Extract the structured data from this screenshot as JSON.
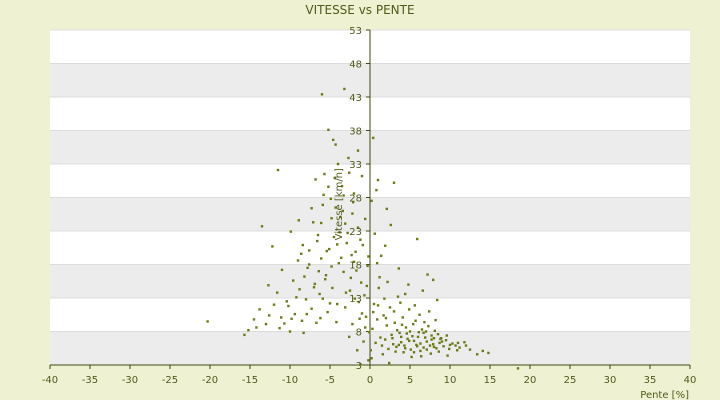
{
  "chart_data": {
    "type": "scatter",
    "title": "VITESSE vs PENTE",
    "xlabel": "Pente [%]",
    "ylabel": "Vitesse [km/h]",
    "xlim": [
      -40,
      40
    ],
    "ylim": [
      3,
      53
    ],
    "x_ticks": [
      "-40",
      "-35",
      "-30",
      "-25",
      "-20",
      "-15",
      "-10",
      "-5",
      "0",
      "5",
      "10",
      "15",
      "20",
      "25",
      "30",
      "35",
      "40"
    ],
    "y_ticks": [
      "3",
      "8",
      "13",
      "18",
      "23",
      "28",
      "33",
      "38",
      "43",
      "48",
      "53"
    ],
    "grid": true,
    "legend": "none",
    "colors": {
      "background": "#eef2d2",
      "band": "#ececec",
      "plot": "#ffffff",
      "axis": "#3c4a10",
      "point": "#6b7a18",
      "text": "#4f5a1c"
    },
    "points": [
      [
        -20.3,
        9.5
      ],
      [
        -15.7,
        7.5
      ],
      [
        -15.2,
        8.2
      ],
      [
        -14.5,
        9.8
      ],
      [
        -13.8,
        11.3
      ],
      [
        -13.5,
        23.7
      ],
      [
        -12.6,
        10.4
      ],
      [
        -12.2,
        20.7
      ],
      [
        -11.6,
        13.8
      ],
      [
        -11.3,
        8.5
      ],
      [
        -11.0,
        17.2
      ],
      [
        -10.7,
        9.2
      ],
      [
        -10.4,
        12.5
      ],
      [
        -10.0,
        8.0
      ],
      [
        -9.9,
        22.9
      ],
      [
        -9.6,
        15.6
      ],
      [
        -9.4,
        10.6
      ],
      [
        -9.0,
        18.6
      ],
      [
        -8.8,
        14.3
      ],
      [
        -8.5,
        9.6
      ],
      [
        -8.3,
        7.8
      ],
      [
        -8.0,
        12.8
      ],
      [
        -7.8,
        17.5
      ],
      [
        -7.6,
        20.1
      ],
      [
        -7.3,
        11.4
      ],
      [
        -7.1,
        24.3
      ],
      [
        -6.9,
        15.1
      ],
      [
        -6.7,
        9.3
      ],
      [
        -6.5,
        22.4
      ],
      [
        -6.3,
        13.6
      ],
      [
        -6.1,
        18.9
      ],
      [
        -5.9,
        26.9
      ],
      [
        -5.7,
        31.5
      ],
      [
        -5.5,
        16.4
      ],
      [
        -5.3,
        10.9
      ],
      [
        -5.1,
        20.3
      ],
      [
        -4.9,
        27.8
      ],
      [
        -4.7,
        14.5
      ],
      [
        -4.5,
        22.1
      ],
      [
        -4.3,
        35.9
      ],
      [
        -4.1,
        12.1
      ],
      [
        -3.9,
        18.2
      ],
      [
        -3.7,
        25.1
      ],
      [
        -3.5,
        29.7
      ],
      [
        -3.3,
        16.9
      ],
      [
        -3.1,
        11.6
      ],
      [
        -2.9,
        21.2
      ],
      [
        -2.7,
        33.9
      ],
      [
        -2.5,
        14.1
      ],
      [
        -2.3,
        19.4
      ],
      [
        -2.1,
        27.3
      ],
      [
        -1.9,
        12.9
      ],
      [
        -1.7,
        17.1
      ],
      [
        -1.5,
        23.5
      ],
      [
        -1.3,
        9.9
      ],
      [
        -1.1,
        15.3
      ],
      [
        -0.9,
        20.9
      ],
      [
        -0.7,
        13.4
      ],
      [
        -0.5,
        10.2
      ],
      [
        -0.3,
        17.8
      ],
      [
        -0.1,
        7.9
      ],
      [
        -11.5,
        32.1
      ],
      [
        -5.2,
        38.1
      ],
      [
        -3.2,
        44.2
      ],
      [
        -6.0,
        43.4
      ],
      [
        -4.6,
        36.6
      ],
      [
        -4.0,
        33.0
      ],
      [
        -7.3,
        26.4
      ],
      [
        -8.9,
        24.6
      ],
      [
        -6.8,
        30.7
      ],
      [
        -5.8,
        28.4
      ],
      [
        0.1,
        5.2
      ],
      [
        0.3,
        8.4
      ],
      [
        0.5,
        12.1
      ],
      [
        0.7,
        6.3
      ],
      [
        0.9,
        9.8
      ],
      [
        1.1,
        14.5
      ],
      [
        1.3,
        7.1
      ],
      [
        1.5,
        5.9
      ],
      [
        1.7,
        10.4
      ],
      [
        1.9,
        6.8
      ],
      [
        2.1,
        8.9
      ],
      [
        2.3,
        5.4
      ],
      [
        2.5,
        11.6
      ],
      [
        2.7,
        7.5
      ],
      [
        2.9,
        6.1
      ],
      [
        3.1,
        9.3
      ],
      [
        3.3,
        5.7
      ],
      [
        3.5,
        13.2
      ],
      [
        3.7,
        7.8
      ],
      [
        3.9,
        6.4
      ],
      [
        4.1,
        10.1
      ],
      [
        4.3,
        5.9
      ],
      [
        4.5,
        8.6
      ],
      [
        4.7,
        6.9
      ],
      [
        4.9,
        11.3
      ],
      [
        5.1,
        5.3
      ],
      [
        5.3,
        7.3
      ],
      [
        5.5,
        6.6
      ],
      [
        5.7,
        9.6
      ],
      [
        5.9,
        5.8
      ],
      [
        6.1,
        7.9
      ],
      [
        6.3,
        6.2
      ],
      [
        6.5,
        8.3
      ],
      [
        6.7,
        5.6
      ],
      [
        6.9,
        7.1
      ],
      [
        7.1,
        6.5
      ],
      [
        7.3,
        8.8
      ],
      [
        7.5,
        5.9
      ],
      [
        7.7,
        7.4
      ],
      [
        7.9,
        6.1
      ],
      [
        8.1,
        8.1
      ],
      [
        8.3,
        5.5
      ],
      [
        8.5,
        7.6
      ],
      [
        8.7,
        6.3
      ],
      [
        8.9,
        7.0
      ],
      [
        9.2,
        5.8
      ],
      [
        9.5,
        6.7
      ],
      [
        9.9,
        5.4
      ],
      [
        10.3,
        6.2
      ],
      [
        10.7,
        5.9
      ],
      [
        11.2,
        5.6
      ],
      [
        11.8,
        6.4
      ],
      [
        12.5,
        5.3
      ],
      [
        13.4,
        4.6
      ],
      [
        14.1,
        5.1
      ],
      [
        14.8,
        4.8
      ],
      [
        18.5,
        2.5
      ],
      [
        0.4,
        36.9
      ],
      [
        1.0,
        30.6
      ],
      [
        3.0,
        30.2
      ],
      [
        2.1,
        26.3
      ],
      [
        2.6,
        23.9
      ],
      [
        5.9,
        21.8
      ],
      [
        0.6,
        22.6
      ],
      [
        1.4,
        19.3
      ],
      [
        7.2,
        16.5
      ],
      [
        7.9,
        15.7
      ],
      [
        4.4,
        13.6
      ],
      [
        6.6,
        14.1
      ],
      [
        8.4,
        12.7
      ],
      [
        3.6,
        17.4
      ],
      [
        1.2,
        16.1
      ],
      [
        0.2,
        27.5
      ],
      [
        -0.6,
        24.8
      ],
      [
        0.8,
        29.1
      ],
      [
        -1.0,
        31.2
      ],
      [
        -2.0,
        28.6
      ],
      [
        -3.4,
        26.0
      ],
      [
        -4.4,
        30.9
      ],
      [
        -2.8,
        22.7
      ],
      [
        -1.8,
        19.9
      ],
      [
        -0.4,
        14.8
      ],
      [
        -1.4,
        12.4
      ],
      [
        -2.2,
        9.1
      ],
      [
        -0.8,
        6.5
      ],
      [
        -1.6,
        5.2
      ],
      [
        -2.6,
        7.2
      ],
      [
        -0.2,
        3.7
      ],
      [
        -1.2,
        3.1
      ],
      [
        2.4,
        3.3
      ],
      [
        5.2,
        4.2
      ],
      [
        4.2,
        4.9
      ],
      [
        3.2,
        5.0
      ],
      [
        6.4,
        4.3
      ],
      [
        7.6,
        4.7
      ],
      [
        8.6,
        5.0
      ],
      [
        9.7,
        4.4
      ],
      [
        10.9,
        5.2
      ],
      [
        1.6,
        4.6
      ],
      [
        0.2,
        4.0
      ],
      [
        2.8,
        7.0
      ],
      [
        3.4,
        8.2
      ],
      [
        4.6,
        7.7
      ],
      [
        5.4,
        9.1
      ],
      [
        6.2,
        10.5
      ],
      [
        6.8,
        9.4
      ],
      [
        7.4,
        11.0
      ],
      [
        8.2,
        9.7
      ],
      [
        1.8,
        12.9
      ],
      [
        2.2,
        15.4
      ],
      [
        3.8,
        12.3
      ],
      [
        4.8,
        15.0
      ],
      [
        5.6,
        11.9
      ],
      [
        0.9,
        18.2
      ],
      [
        1.9,
        20.8
      ],
      [
        -3.6,
        19.0
      ],
      [
        -4.8,
        17.7
      ],
      [
        -5.6,
        15.8
      ],
      [
        -6.4,
        17.0
      ],
      [
        -7.0,
        14.6
      ],
      [
        -8.2,
        16.2
      ],
      [
        -9.2,
        13.1
      ],
      [
        -10.2,
        11.8
      ],
      [
        -12.0,
        12.0
      ],
      [
        -13.0,
        9.1
      ],
      [
        -14.2,
        8.6
      ],
      [
        -6.2,
        10.0
      ],
      [
        -5.0,
        12.2
      ],
      [
        -4.2,
        9.4
      ],
      [
        -3.0,
        13.8
      ],
      [
        -2.4,
        16.0
      ],
      [
        -3.8,
        22.8
      ],
      [
        -4.8,
        24.9
      ],
      [
        -5.4,
        20.0
      ],
      [
        -6.6,
        21.5
      ],
      [
        -7.6,
        18.0
      ],
      [
        -8.6,
        19.6
      ],
      [
        -2.2,
        25.6
      ],
      [
        -1.2,
        21.7
      ],
      [
        -0.2,
        19.2
      ],
      [
        -3.3,
        28.3
      ],
      [
        -2.6,
        31.7
      ],
      [
        -1.5,
        35.0
      ],
      [
        -4.1,
        21.0
      ],
      [
        -5.9,
        12.9
      ],
      [
        -7.9,
        10.6
      ],
      [
        -9.8,
        9.9
      ],
      [
        -11.1,
        10.1
      ],
      [
        -12.7,
        14.9
      ],
      [
        -8.4,
        20.9
      ],
      [
        -6.1,
        24.2
      ],
      [
        -5.2,
        29.6
      ],
      [
        -4.3,
        26.5
      ],
      [
        -3.1,
        24.1
      ],
      [
        -2.0,
        18.4
      ],
      [
        -1.0,
        10.7
      ],
      [
        -0.6,
        8.6
      ],
      [
        0.4,
        10.9
      ],
      [
        1.0,
        11.9
      ],
      [
        2.0,
        10.0
      ],
      [
        3.0,
        11.0
      ],
      [
        4.0,
        9.0
      ],
      [
        5.0,
        8.0
      ],
      [
        6.0,
        7.2
      ],
      [
        7.0,
        8.0
      ],
      [
        8.0,
        7.0
      ],
      [
        9.0,
        6.5
      ],
      [
        10.0,
        6.0
      ],
      [
        11.0,
        6.3
      ],
      [
        12.0,
        5.9
      ],
      [
        6.3,
        5.1
      ],
      [
        7.1,
        5.3
      ],
      [
        8.0,
        5.7
      ],
      [
        5.8,
        6.0
      ],
      [
        4.9,
        6.6
      ],
      [
        3.9,
        7.2
      ],
      [
        6.7,
        7.8
      ],
      [
        7.7,
        6.8
      ],
      [
        8.8,
        6.9
      ],
      [
        9.6,
        7.4
      ],
      [
        4.4,
        5.5
      ],
      [
        5.5,
        4.9
      ],
      [
        3.6,
        6.0
      ]
    ]
  }
}
